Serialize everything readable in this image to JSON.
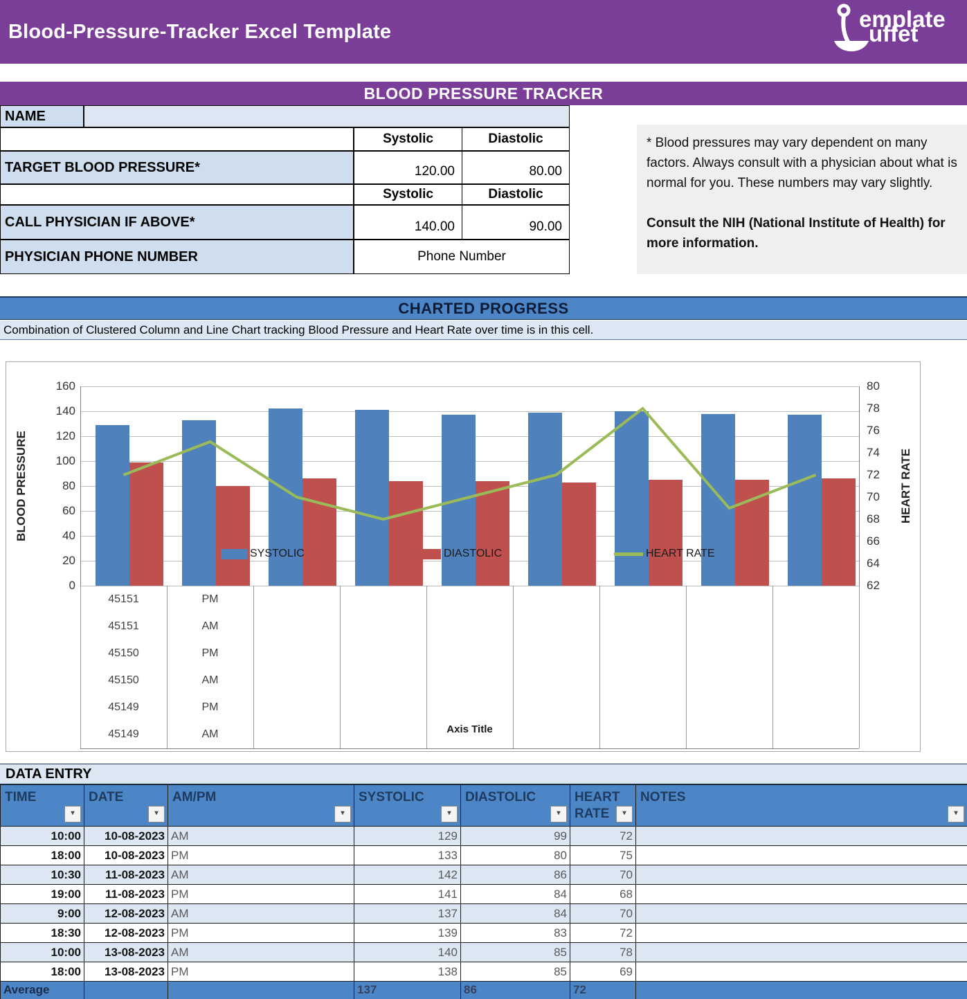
{
  "header": {
    "title": "Blood-Pressure-Tracker Excel Template",
    "logo": {
      "line1": "emplate",
      "line2": "uffet"
    }
  },
  "banner": {
    "title": "BLOOD PRESSURE TRACKER"
  },
  "info": {
    "name_label": "NAME",
    "name_value": "",
    "systolic_header": "Systolic",
    "diastolic_header": "Diastolic",
    "target_label": "TARGET BLOOD PRESSURE*",
    "target_systolic": "120.00",
    "target_diastolic": "80.00",
    "call_label": "CALL PHYSICIAN IF ABOVE*",
    "call_systolic": "140.00",
    "call_diastolic": "90.00",
    "phone_label": "PHYSICIAN PHONE NUMBER",
    "phone_value": "Phone Number"
  },
  "note": {
    "p1": "* Blood pressures may vary dependent on many factors.  Always consult with a physician about what is normal for you. These numbers may vary slightly.",
    "p2": "Consult the NIH (National Institute of Health) for more information."
  },
  "charted": {
    "title": "CHARTED PROGRESS",
    "description": "Combination of Clustered Column and Line Chart tracking Blood Pressure and Heart Rate over time is in this cell."
  },
  "chart_data": {
    "type": "combo: clustered column + line",
    "groups": 9,
    "series": [
      {
        "name": "SYSTOLIC",
        "type": "bar",
        "axis": "left",
        "color": "#4F81BD",
        "values": [
          129,
          133,
          142,
          141,
          137,
          139,
          140,
          138,
          137
        ]
      },
      {
        "name": "DIASTOLIC",
        "type": "bar",
        "axis": "left",
        "color": "#C0504D",
        "values": [
          99,
          80,
          86,
          84,
          84,
          83,
          85,
          85,
          86
        ]
      },
      {
        "name": "HEART RATE",
        "type": "line",
        "axis": "right",
        "color": "#9BBB59",
        "values": [
          72,
          75,
          70,
          68,
          70,
          72,
          78,
          69,
          72
        ]
      }
    ],
    "left_axis": {
      "title": "BLOOD PRESSURE",
      "min": 0,
      "max": 160,
      "ticks": [
        160,
        140,
        120,
        100,
        80,
        60,
        40,
        20,
        0
      ]
    },
    "right_axis": {
      "title": "HEART RATE",
      "min": 62,
      "max": 80,
      "ticks": [
        80,
        78,
        76,
        74,
        72,
        70,
        68,
        66,
        64,
        62
      ]
    },
    "x_axis_title": "Axis Title",
    "x_axis_label_stack": {
      "date_serials": [
        "45151",
        "45151",
        "45150",
        "45150",
        "45149",
        "45149"
      ],
      "ampm": [
        "PM",
        "AM",
        "PM",
        "AM",
        "PM",
        "AM"
      ]
    },
    "legend": {
      "position": "inside-bottom",
      "entries": [
        "SYSTOLIC",
        "DIASTOLIC",
        "HEART RATE"
      ]
    },
    "grid": "horizontal, every 20 units of left axis"
  },
  "data_entry": {
    "title": "DATA ENTRY",
    "columns": [
      "TIME",
      "DATE",
      "AM/PM",
      "SYSTOLIC",
      "DIASTOLIC",
      "HEART RATE",
      "NOTES"
    ],
    "filter_icon": "▾",
    "rows": [
      {
        "time": "10:00",
        "date": "10-08-2023",
        "ampm": "AM",
        "systolic": "129",
        "diastolic": "99",
        "heart_rate": "72",
        "notes": ""
      },
      {
        "time": "18:00",
        "date": "10-08-2023",
        "ampm": "PM",
        "systolic": "133",
        "diastolic": "80",
        "heart_rate": "75",
        "notes": ""
      },
      {
        "time": "10:30",
        "date": "11-08-2023",
        "ampm": "AM",
        "systolic": "142",
        "diastolic": "86",
        "heart_rate": "70",
        "notes": ""
      },
      {
        "time": "19:00",
        "date": "11-08-2023",
        "ampm": "PM",
        "systolic": "141",
        "diastolic": "84",
        "heart_rate": "68",
        "notes": ""
      },
      {
        "time": "9:00",
        "date": "12-08-2023",
        "ampm": "AM",
        "systolic": "137",
        "diastolic": "84",
        "heart_rate": "70",
        "notes": ""
      },
      {
        "time": "18:30",
        "date": "12-08-2023",
        "ampm": "PM",
        "systolic": "139",
        "diastolic": "83",
        "heart_rate": "72",
        "notes": ""
      },
      {
        "time": "10:00",
        "date": "13-08-2023",
        "ampm": "AM",
        "systolic": "140",
        "diastolic": "85",
        "heart_rate": "78",
        "notes": ""
      },
      {
        "time": "18:00",
        "date": "13-08-2023",
        "ampm": "PM",
        "systolic": "138",
        "diastolic": "85",
        "heart_rate": "69",
        "notes": ""
      }
    ],
    "average": {
      "label": "Average",
      "systolic": "137",
      "diastolic": "86",
      "heart_rate": "72"
    }
  },
  "colors": {
    "purple": "#7b3e98",
    "band_blue": "#4d86c6",
    "row_light_blue": "#dce7f3",
    "label_blue": "#cfdeef",
    "note_gray": "#efefef",
    "bar_blue": "#4F81BD",
    "bar_red": "#C0504D",
    "line_green": "#9BBB59"
  }
}
